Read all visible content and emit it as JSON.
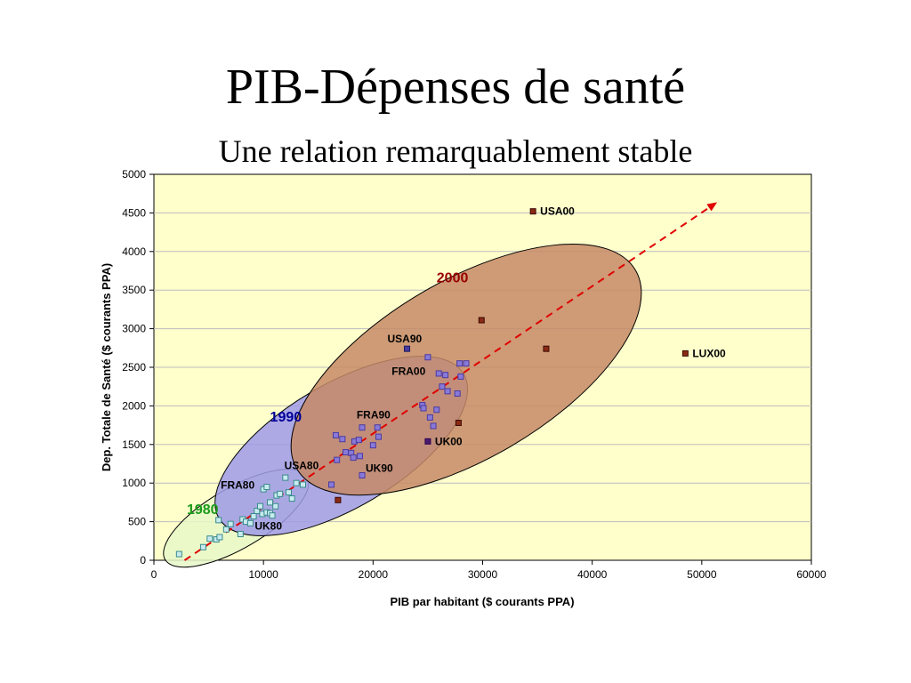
{
  "slide": {
    "title": "PIB-Dépenses de santé",
    "subtitle": "Une relation remarquablement stable"
  },
  "colors": {
    "plot_background": "#ffffcc",
    "ellipse_1980": "#e8f8c8",
    "ellipse_1990": "#9f9ae8",
    "ellipse_2000": "#c58a66",
    "trend_line": "#e00000",
    "label_1980": "#1a9a1a",
    "label_1990": "#000099",
    "label_2000": "#990000"
  },
  "chart_data": {
    "type": "scatter",
    "xlabel": "PIB par habitant ($ courants PPA)",
    "ylabel": "Dep. Totale de Santé ($ courants PPA)",
    "xlim": [
      0,
      60000
    ],
    "ylim": [
      0,
      5000
    ],
    "xticks": [
      0,
      10000,
      20000,
      30000,
      40000,
      50000,
      60000
    ],
    "yticks": [
      0,
      500,
      1000,
      1500,
      2000,
      2500,
      3000,
      3500,
      4000,
      4500,
      5000
    ],
    "grid": "horizontal",
    "trend_line": {
      "x": [
        2800,
        51000
      ],
      "y": [
        0,
        4600
      ]
    },
    "group_labels": [
      {
        "text": "1980",
        "x": 3000,
        "y": 600,
        "color_key": "label_1980"
      },
      {
        "text": "1990",
        "x": 10600,
        "y": 1800,
        "color_key": "label_1990"
      },
      {
        "text": "2000",
        "x": 25800,
        "y": 3600,
        "color_key": "label_2000"
      }
    ],
    "ellipses": [
      {
        "name": "1980",
        "cx": 7500,
        "cy": 545,
        "rx": 6500,
        "ry": 390,
        "angle_data": 0.0829,
        "color_key": "ellipse_1980"
      },
      {
        "name": "1990",
        "cx": 17100,
        "cy": 1480,
        "rx": 11200,
        "ry": 800,
        "angle_data": 0.0839,
        "color_key": "ellipse_1990"
      },
      {
        "name": "2000",
        "cx": 28500,
        "cy": 2470,
        "rx": 15500,
        "ry": 1150,
        "angle_data": 0.0834,
        "color_key": "ellipse_2000"
      }
    ],
    "series": [
      {
        "name": "1980",
        "fill": "#c8ecf0",
        "stroke": "#3a8a8a",
        "points": [
          [
            2300,
            80
          ],
          [
            4500,
            170
          ],
          [
            5100,
            280
          ],
          [
            5700,
            270
          ],
          [
            5900,
            520
          ],
          [
            6000,
            300
          ],
          [
            6600,
            400
          ],
          [
            7000,
            470
          ],
          [
            7900,
            340
          ],
          [
            8100,
            530
          ],
          [
            8400,
            500
          ],
          [
            8800,
            480
          ],
          [
            9100,
            570
          ],
          [
            9400,
            640
          ],
          [
            9700,
            700
          ],
          [
            9900,
            600
          ],
          [
            10000,
            920
          ],
          [
            10300,
            620
          ],
          [
            10300,
            950
          ],
          [
            10600,
            750
          ],
          [
            10600,
            610
          ],
          [
            10800,
            580
          ],
          [
            11100,
            700
          ],
          [
            11200,
            840
          ],
          [
            11500,
            860
          ],
          [
            12000,
            1070
          ],
          [
            12300,
            880
          ],
          [
            12600,
            800
          ],
          [
            13000,
            1000
          ],
          [
            13600,
            980
          ]
        ]
      },
      {
        "name": "1990",
        "fill": "#8a7ad8",
        "stroke": "#4a3aa0",
        "points": [
          [
            16200,
            980
          ],
          [
            16600,
            1620
          ],
          [
            16700,
            1300
          ],
          [
            17200,
            1570
          ],
          [
            17500,
            1400
          ],
          [
            18000,
            1390
          ],
          [
            18200,
            1330
          ],
          [
            18300,
            1540
          ],
          [
            18700,
            1560
          ],
          [
            18800,
            1350
          ],
          [
            19000,
            1720
          ],
          [
            20000,
            1490
          ],
          [
            20400,
            1720
          ],
          [
            20500,
            1600
          ],
          [
            24500,
            2010
          ],
          [
            24600,
            1970
          ],
          [
            25000,
            2630
          ],
          [
            25200,
            1850
          ],
          [
            25500,
            1740
          ],
          [
            25800,
            1950
          ],
          [
            26000,
            2420
          ],
          [
            26300,
            2250
          ],
          [
            26600,
            2400
          ],
          [
            26800,
            2190
          ],
          [
            27700,
            2160
          ],
          [
            27900,
            2550
          ],
          [
            28000,
            2380
          ],
          [
            28500,
            2550
          ]
        ]
      },
      {
        "name": "2000",
        "fill": "#8b2a15",
        "stroke": "#3a0a00",
        "points": [
          [
            16800,
            780
          ],
          [
            27800,
            1780
          ],
          [
            29900,
            3110
          ],
          [
            35800,
            2740
          ]
        ]
      }
    ],
    "labeled_points": [
      {
        "label": "USA00",
        "x": 34600,
        "y": 4520,
        "fill": "#8b2a15",
        "stroke": "#3a0a00",
        "label_side": "right"
      },
      {
        "label": "LUX00",
        "x": 48500,
        "y": 2680,
        "fill": "#8b2a15",
        "stroke": "#3a0a00",
        "label_side": "right"
      },
      {
        "label": "UK00",
        "x": 25000,
        "y": 1540,
        "fill": "#4a1a70",
        "stroke": "#2a0050",
        "label_side": "right"
      },
      {
        "label": "USA90",
        "x": 23100,
        "y": 2740,
        "fill": "#4a3aa0",
        "stroke": "#1a1a60",
        "label_side": "above"
      },
      {
        "label": "FRA00",
        "x": 0,
        "y": 0,
        "fill": "none",
        "stroke": "none",
        "label_side": "text",
        "tx": 21700,
        "ty": 2400
      },
      {
        "label": "FRA90",
        "x": 0,
        "y": 0,
        "fill": "none",
        "stroke": "none",
        "label_side": "text",
        "tx": 18500,
        "ty": 1840
      },
      {
        "label": "UK90",
        "x": 19000,
        "y": 1100,
        "fill": "#8a7ad8",
        "stroke": "#4a3aa0",
        "label_side": "right-up"
      },
      {
        "label": "USA80",
        "x": 0,
        "y": 0,
        "fill": "none",
        "stroke": "none",
        "label_side": "text",
        "tx": 11900,
        "ty": 1180
      },
      {
        "label": "FRA80",
        "x": 0,
        "y": 0,
        "fill": "none",
        "stroke": "none",
        "label_side": "text",
        "tx": 6100,
        "ty": 930
      },
      {
        "label": "UK80",
        "x": 0,
        "y": 0,
        "fill": "none",
        "stroke": "none",
        "label_side": "text",
        "tx": 9200,
        "ty": 400
      }
    ]
  }
}
